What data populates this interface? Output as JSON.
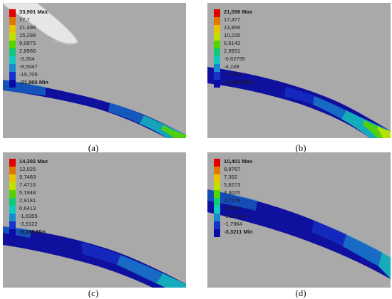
{
  "colors": {
    "bands": [
      "#e00000",
      "#e07800",
      "#e8c400",
      "#c2e000",
      "#56d400",
      "#12c87a",
      "#16c7c0",
      "#1a8ad0",
      "#1733cc",
      "#0a0aa6"
    ],
    "background": "#a9a9a9",
    "tool": "#e6e6e6"
  },
  "panels": [
    {
      "caption": "(a)",
      "legend": {
        "max_label": "33,901 Max",
        "values": [
          "27,7",
          "21,499",
          "15,298",
          "9,0975",
          "2,8968",
          "-3,304",
          "-9,5047",
          "-15,705"
        ],
        "min_label": "-21,906 Min"
      }
    },
    {
      "caption": "(b)",
      "legend": {
        "max_label": "21,098 Max",
        "values": [
          "17,477",
          "13,856",
          "10,235",
          "6,6142",
          "2,9931",
          "-0,62795",
          "-4,249",
          "-7,8701"
        ],
        "min_label": "-11,491 Min"
      }
    },
    {
      "caption": "(c)",
      "legend": {
        "max_label": "14,302 Max",
        "values": [
          "12,025",
          "9,7483",
          "7,4716",
          "5,1948",
          "2,9181",
          "0,6413",
          "-1,6355",
          "-3,9122"
        ],
        "min_label": "-6,189 Min"
      }
    },
    {
      "caption": "(d)",
      "legend": {
        "max_label": "10,401 Max",
        "values": [
          "8,8767",
          "7,352",
          "5,8273",
          "4,3025",
          "2,7778",
          "1,2531",
          "-0,27163",
          "-1,7964"
        ],
        "min_label": "-3,3211 Min"
      }
    }
  ]
}
